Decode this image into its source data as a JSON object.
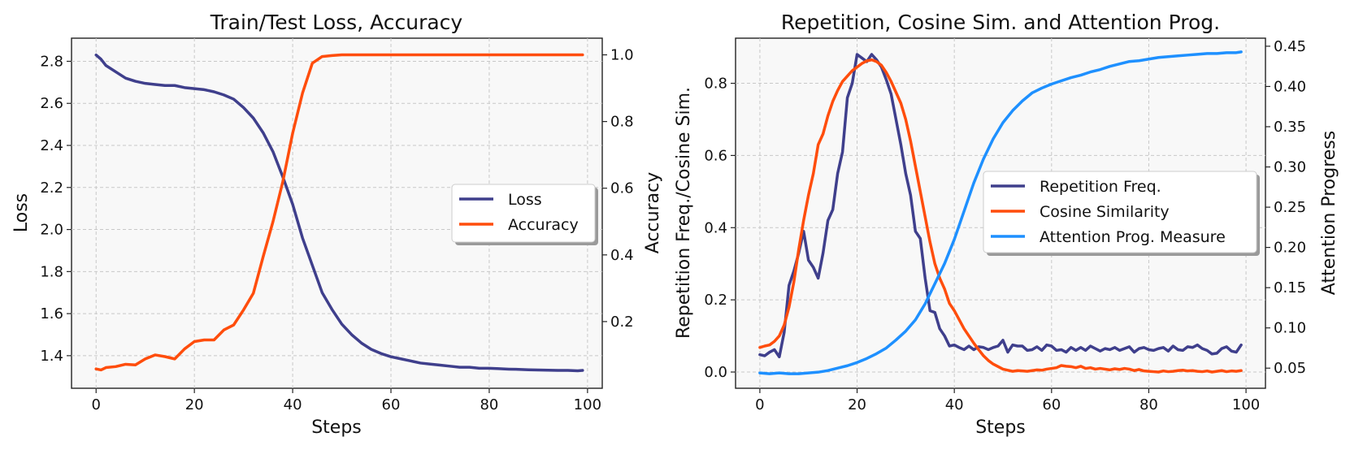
{
  "chart_data": [
    {
      "type": "line",
      "title": "Train/Test Loss, Accuracy",
      "xlabel": "Steps",
      "ylabel": "Loss",
      "ylabel_right": "Accuracy",
      "xlim": [
        -5,
        103
      ],
      "ylim": [
        1.245,
        2.91
      ],
      "ylim_right": [
        0.0,
        1.05
      ],
      "xticks": [
        0,
        20,
        40,
        60,
        80,
        100
      ],
      "xtick_labels": [
        "0",
        "20",
        "40",
        "60",
        "80",
        "100"
      ],
      "yticks": [
        1.4,
        1.6,
        1.8,
        2.0,
        2.2,
        2.4,
        2.6,
        2.8
      ],
      "ytick_labels": [
        "1.4",
        "1.6",
        "1.8",
        "2.0",
        "2.2",
        "2.4",
        "2.6",
        "2.8"
      ],
      "yticks_right": [
        0.2,
        0.4,
        0.6,
        0.8,
        1.0
      ],
      "ytick_labels_right": [
        "0.2",
        "0.4",
        "0.6",
        "0.8",
        "1.0"
      ],
      "legend_position": "center-right",
      "series": [
        {
          "name": "Loss",
          "axis": "left",
          "color": "#3f3f8c",
          "x": [
            0,
            1,
            2,
            4,
            6,
            8,
            10,
            12,
            14,
            16,
            18,
            20,
            22,
            24,
            26,
            28,
            30,
            32,
            34,
            36,
            38,
            40,
            42,
            44,
            46,
            48,
            50,
            52,
            54,
            56,
            58,
            60,
            62,
            64,
            66,
            68,
            70,
            72,
            74,
            76,
            78,
            80,
            82,
            84,
            86,
            88,
            90,
            92,
            94,
            96,
            98,
            99
          ],
          "y": [
            2.83,
            2.81,
            2.78,
            2.75,
            2.72,
            2.705,
            2.695,
            2.69,
            2.685,
            2.685,
            2.675,
            2.67,
            2.665,
            2.655,
            2.64,
            2.62,
            2.58,
            2.53,
            2.46,
            2.37,
            2.25,
            2.12,
            1.96,
            1.83,
            1.7,
            1.62,
            1.55,
            1.5,
            1.46,
            1.43,
            1.41,
            1.395,
            1.385,
            1.375,
            1.365,
            1.36,
            1.355,
            1.35,
            1.345,
            1.345,
            1.34,
            1.34,
            1.338,
            1.336,
            1.335,
            1.333,
            1.332,
            1.331,
            1.33,
            1.33,
            1.328,
            1.33
          ]
        },
        {
          "name": "Accuracy",
          "axis": "right",
          "color": "#ff4d0c",
          "x": [
            0,
            1,
            2,
            4,
            6,
            8,
            10,
            12,
            14,
            16,
            18,
            20,
            22,
            24,
            26,
            28,
            30,
            32,
            34,
            36,
            38,
            40,
            42,
            44,
            46,
            48,
            50,
            52,
            55,
            60,
            70,
            80,
            90,
            99
          ],
          "y": [
            0.058,
            0.055,
            0.062,
            0.065,
            0.072,
            0.07,
            0.088,
            0.1,
            0.095,
            0.088,
            0.118,
            0.14,
            0.145,
            0.145,
            0.175,
            0.19,
            0.235,
            0.285,
            0.395,
            0.5,
            0.62,
            0.765,
            0.885,
            0.975,
            0.995,
            0.998,
            1.0,
            1.0,
            1.0,
            1.0,
            1.0,
            1.0,
            1.0,
            1.0
          ]
        }
      ]
    },
    {
      "type": "line",
      "title": "Repetition, Cosine Sim. and Attention Prog.",
      "xlabel": "Steps",
      "ylabel": "Repetition Freq./Cosine Sim.",
      "ylabel_right": "Attention Progress",
      "xlim": [
        -5,
        104
      ],
      "ylim": [
        -0.045,
        0.925
      ],
      "ylim_right": [
        0.025,
        0.46
      ],
      "xticks": [
        0,
        20,
        40,
        60,
        80,
        100
      ],
      "xtick_labels": [
        "0",
        "20",
        "40",
        "60",
        "80",
        "100"
      ],
      "yticks": [
        0.0,
        0.2,
        0.4,
        0.6,
        0.8
      ],
      "ytick_labels": [
        "0.0",
        "0.2",
        "0.4",
        "0.6",
        "0.8"
      ],
      "yticks_right": [
        0.05,
        0.1,
        0.15,
        0.2,
        0.25,
        0.3,
        0.35,
        0.4,
        0.45
      ],
      "ytick_labels_right": [
        "0.05",
        "0.10",
        "0.15",
        "0.20",
        "0.25",
        "0.30",
        "0.35",
        "0.40",
        "0.45"
      ],
      "legend_position": "center-right",
      "series": [
        {
          "name": "Repetition Freq.",
          "axis": "left",
          "color": "#3f3f8c",
          "x": [
            0,
            1,
            2,
            3,
            4,
            5,
            6,
            7,
            8,
            9,
            10,
            11,
            12,
            13,
            14,
            15,
            16,
            17,
            18,
            19,
            20,
            21,
            22,
            23,
            24,
            25,
            26,
            27,
            28,
            29,
            30,
            31,
            32,
            33,
            34,
            35,
            36,
            37,
            38,
            39,
            40,
            41,
            42,
            43,
            44,
            45,
            46,
            47,
            48,
            49,
            50,
            51,
            52,
            53,
            54,
            55,
            56,
            57,
            58,
            59,
            60,
            61,
            62,
            63,
            64,
            65,
            66,
            67,
            68,
            69,
            70,
            71,
            72,
            73,
            74,
            75,
            76,
            77,
            78,
            79,
            80,
            81,
            82,
            83,
            84,
            85,
            86,
            87,
            88,
            89,
            90,
            91,
            92,
            93,
            94,
            95,
            96,
            97,
            98,
            99
          ],
          "y": [
            0.048,
            0.045,
            0.055,
            0.062,
            0.042,
            0.11,
            0.24,
            0.28,
            0.33,
            0.39,
            0.31,
            0.29,
            0.26,
            0.33,
            0.42,
            0.45,
            0.55,
            0.61,
            0.76,
            0.8,
            0.88,
            0.87,
            0.86,
            0.88,
            0.865,
            0.845,
            0.81,
            0.77,
            0.7,
            0.63,
            0.55,
            0.49,
            0.39,
            0.37,
            0.26,
            0.17,
            0.165,
            0.12,
            0.1,
            0.072,
            0.075,
            0.068,
            0.062,
            0.072,
            0.062,
            0.07,
            0.068,
            0.062,
            0.068,
            0.072,
            0.088,
            0.055,
            0.075,
            0.072,
            0.072,
            0.06,
            0.062,
            0.07,
            0.06,
            0.075,
            0.072,
            0.06,
            0.062,
            0.055,
            0.068,
            0.06,
            0.068,
            0.06,
            0.072,
            0.065,
            0.058,
            0.065,
            0.062,
            0.068,
            0.06,
            0.065,
            0.07,
            0.055,
            0.065,
            0.068,
            0.062,
            0.06,
            0.065,
            0.068,
            0.058,
            0.072,
            0.062,
            0.06,
            0.07,
            0.068,
            0.075,
            0.065,
            0.06,
            0.05,
            0.052,
            0.065,
            0.07,
            0.058,
            0.055,
            0.075
          ]
        },
        {
          "name": "Cosine Similarity",
          "axis": "left",
          "color": "#ff4d0c",
          "x": [
            0,
            1,
            2,
            3,
            4,
            5,
            6,
            7,
            8,
            9,
            10,
            11,
            12,
            13,
            14,
            15,
            16,
            17,
            18,
            19,
            20,
            21,
            22,
            23,
            24,
            25,
            26,
            27,
            28,
            29,
            30,
            31,
            32,
            33,
            34,
            35,
            36,
            37,
            38,
            39,
            40,
            41,
            42,
            43,
            44,
            45,
            46,
            47,
            48,
            49,
            50,
            51,
            52,
            53,
            54,
            55,
            56,
            57,
            58,
            59,
            60,
            61,
            62,
            63,
            64,
            65,
            66,
            67,
            68,
            69,
            70,
            71,
            72,
            73,
            74,
            75,
            76,
            77,
            78,
            79,
            80,
            81,
            82,
            83,
            84,
            85,
            86,
            87,
            88,
            89,
            90,
            91,
            92,
            93,
            94,
            95,
            96,
            97,
            98,
            99
          ],
          "y": [
            0.068,
            0.072,
            0.075,
            0.085,
            0.1,
            0.13,
            0.18,
            0.25,
            0.34,
            0.42,
            0.49,
            0.55,
            0.63,
            0.66,
            0.71,
            0.75,
            0.78,
            0.805,
            0.82,
            0.835,
            0.845,
            0.855,
            0.862,
            0.865,
            0.86,
            0.85,
            0.83,
            0.805,
            0.775,
            0.745,
            0.7,
            0.64,
            0.57,
            0.5,
            0.43,
            0.36,
            0.3,
            0.26,
            0.23,
            0.19,
            0.17,
            0.145,
            0.12,
            0.1,
            0.08,
            0.062,
            0.045,
            0.032,
            0.022,
            0.015,
            0.008,
            0.005,
            0.002,
            0.004,
            0.003,
            0.002,
            0.004,
            0.006,
            0.005,
            0.008,
            0.01,
            0.012,
            0.018,
            0.016,
            0.015,
            0.012,
            0.016,
            0.01,
            0.012,
            0.008,
            0.01,
            0.008,
            0.006,
            0.009,
            0.007,
            0.01,
            0.008,
            0.004,
            0.007,
            0.003,
            0.002,
            0.001,
            0.0,
            0.003,
            0.001,
            0.002,
            0.004,
            0.005,
            0.003,
            0.004,
            0.002,
            0.001,
            0.003,
            0.0,
            0.002,
            0.004,
            0.001,
            0.003,
            0.002,
            0.004
          ]
        },
        {
          "name": "Attention Prog. Measure",
          "axis": "right",
          "color": "#1e90ff",
          "x": [
            0,
            2,
            4,
            6,
            8,
            10,
            12,
            14,
            16,
            18,
            20,
            22,
            24,
            26,
            28,
            30,
            32,
            34,
            36,
            38,
            40,
            42,
            44,
            46,
            48,
            50,
            52,
            54,
            56,
            58,
            60,
            62,
            64,
            66,
            68,
            70,
            72,
            74,
            76,
            78,
            80,
            82,
            84,
            86,
            88,
            90,
            92,
            94,
            96,
            98,
            99
          ],
          "y": [
            0.044,
            0.043,
            0.044,
            0.043,
            0.043,
            0.044,
            0.045,
            0.047,
            0.05,
            0.053,
            0.057,
            0.062,
            0.068,
            0.075,
            0.085,
            0.096,
            0.11,
            0.13,
            0.155,
            0.18,
            0.21,
            0.245,
            0.28,
            0.31,
            0.335,
            0.355,
            0.37,
            0.382,
            0.392,
            0.398,
            0.403,
            0.407,
            0.411,
            0.414,
            0.418,
            0.421,
            0.425,
            0.428,
            0.431,
            0.432,
            0.434,
            0.436,
            0.437,
            0.438,
            0.439,
            0.44,
            0.441,
            0.441,
            0.442,
            0.442,
            0.443
          ]
        }
      ]
    }
  ]
}
